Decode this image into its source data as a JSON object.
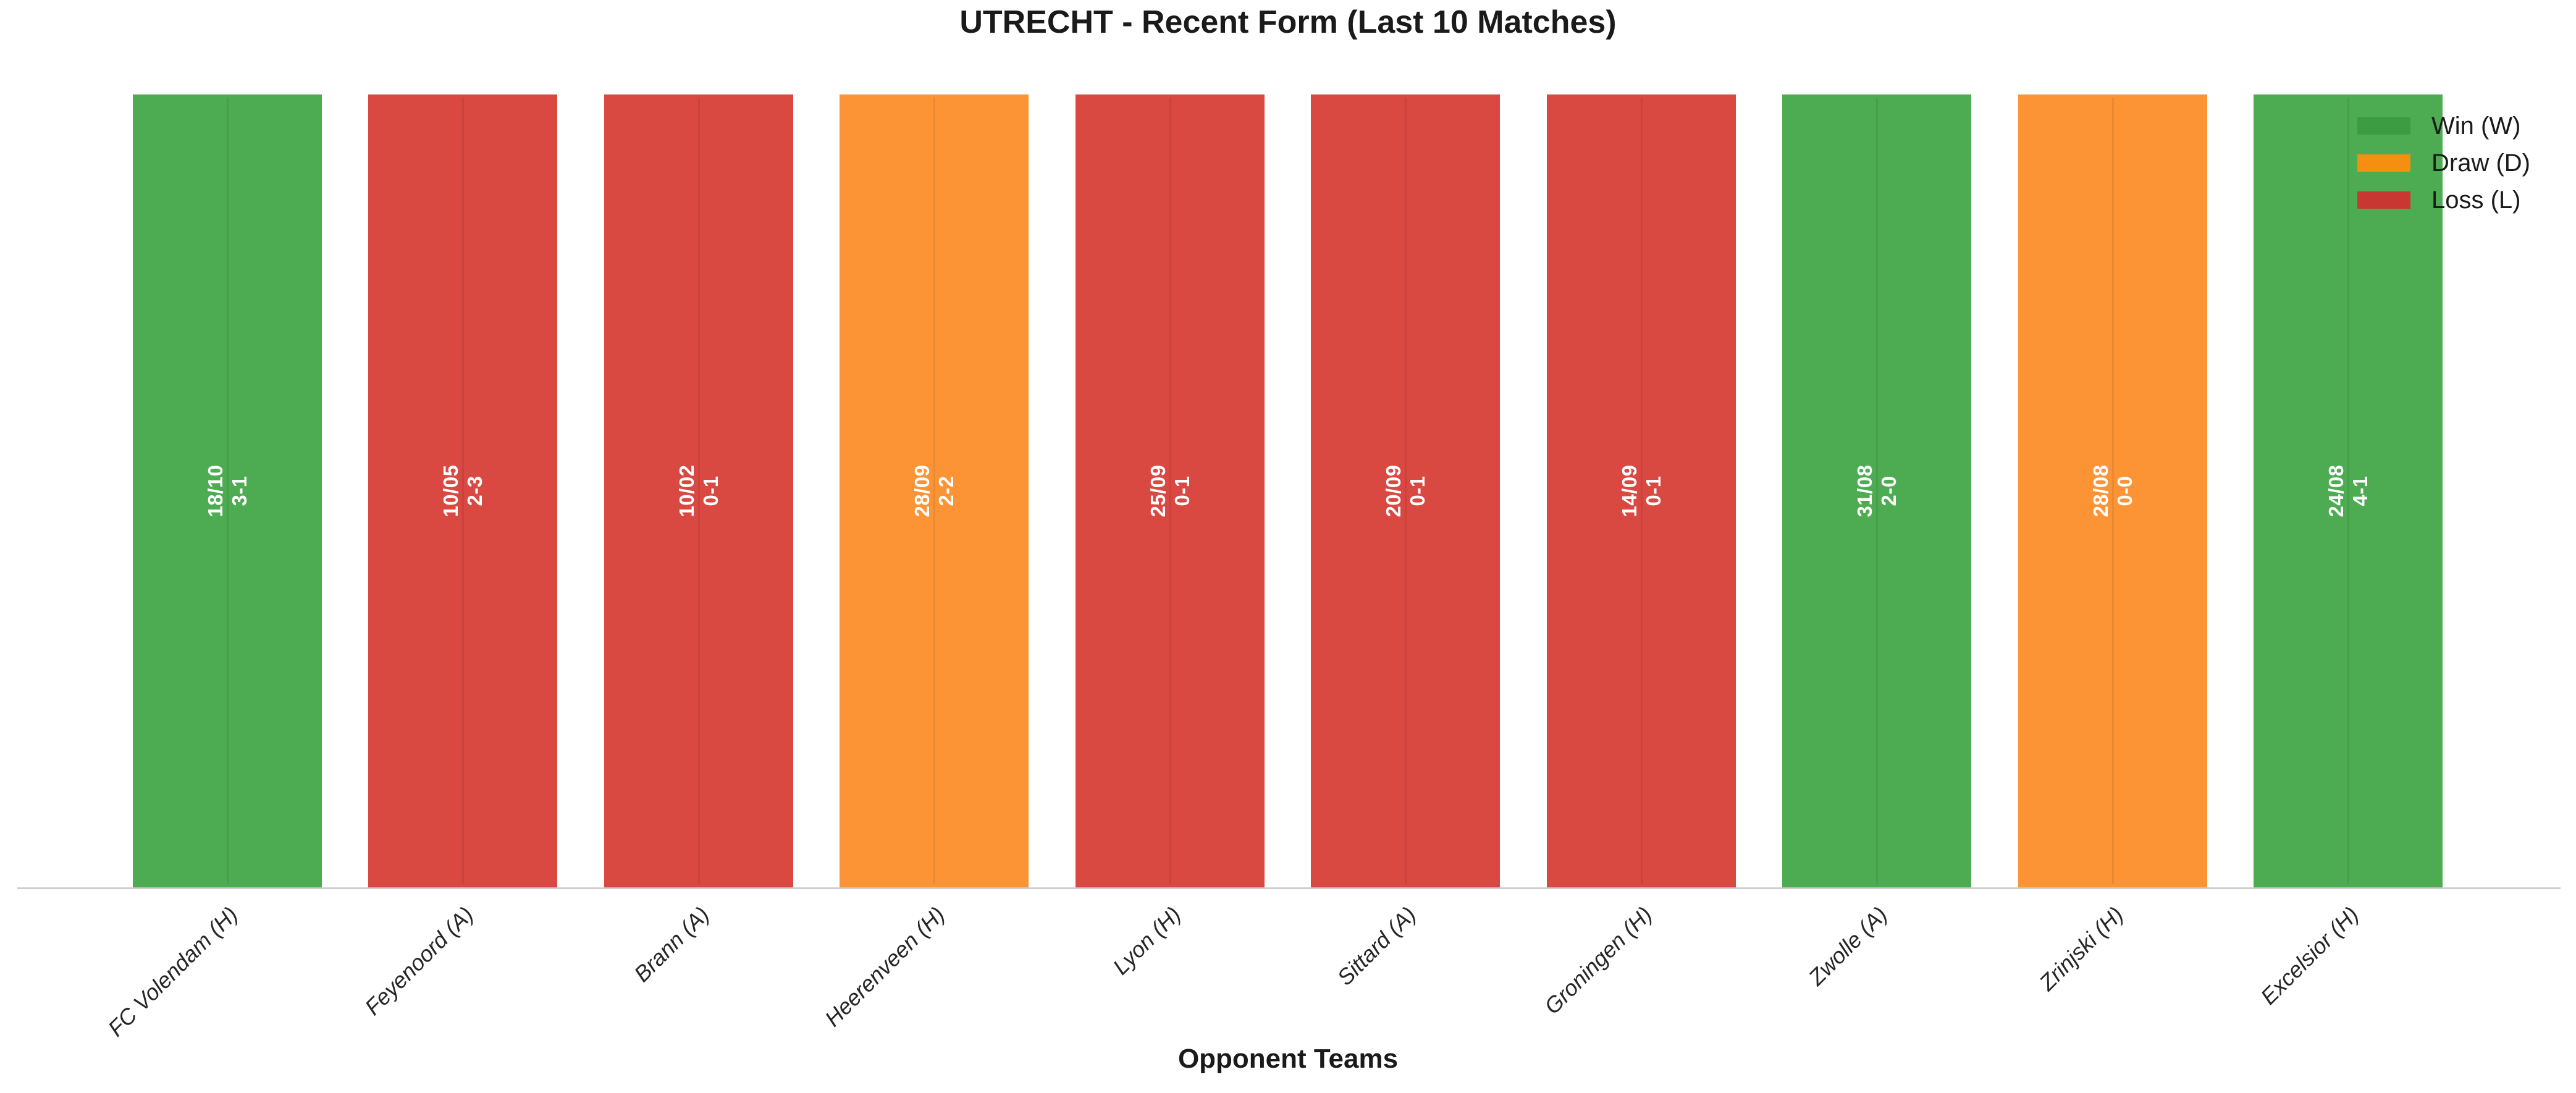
{
  "chart_data": {
    "type": "bar",
    "title": "UTRECHT - Recent Form (Last 10 Matches)",
    "xlabel": "Opponent Teams",
    "ylabel": "",
    "ylim": [
      0,
      1.05
    ],
    "grid": false,
    "orientation": "vertical",
    "categories": [
      "FC Volendam (H)",
      "Feyenoord (A)",
      "Brann (A)",
      "Heerenveen (H)",
      "Lyon (H)",
      "Sittard (A)",
      "Groningen (H)",
      "Zwolle (A)",
      "Zrinjski (H)",
      "Excelsior (H)"
    ],
    "values": [
      1,
      1,
      1,
      1,
      1,
      1,
      1,
      1,
      1,
      1
    ],
    "matches": [
      {
        "opponent": "FC Volendam (H)",
        "date": "18/10",
        "score": "3-1",
        "result": "win"
      },
      {
        "opponent": "Feyenoord (A)",
        "date": "10/05",
        "score": "2-3",
        "result": "loss"
      },
      {
        "opponent": "Brann (A)",
        "date": "10/02",
        "score": "0-1",
        "result": "loss"
      },
      {
        "opponent": "Heerenveen (H)",
        "date": "28/09",
        "score": "2-2",
        "result": "draw"
      },
      {
        "opponent": "Lyon (H)",
        "date": "25/09",
        "score": "0-1",
        "result": "loss"
      },
      {
        "opponent": "Sittard (A)",
        "date": "20/09",
        "score": "0-1",
        "result": "loss"
      },
      {
        "opponent": "Groningen (H)",
        "date": "14/09",
        "score": "0-1",
        "result": "loss"
      },
      {
        "opponent": "Zwolle (A)",
        "date": "31/08",
        "score": "2-0",
        "result": "win"
      },
      {
        "opponent": "Zrinjski (H)",
        "date": "28/08",
        "score": "0-0",
        "result": "draw"
      },
      {
        "opponent": "Excelsior (H)",
        "date": "24/08",
        "score": "4-1",
        "result": "win"
      }
    ],
    "legend": {
      "position": "upper-right",
      "frame": false,
      "entries": [
        {
          "label": "Win (W)",
          "key": "win"
        },
        {
          "label": "Draw (D)",
          "key": "draw"
        },
        {
          "label": "Loss (L)",
          "key": "loss"
        }
      ]
    },
    "colors": {
      "win": "#4DAB52",
      "draw": "#FC9435",
      "loss": "#DA4842",
      "legend_win": "#3C9C41",
      "legend_draw": "#F68E11",
      "legend_loss": "#C93732",
      "axis_line": "#CCCCCC",
      "title_text": "#1A1A1A",
      "tick_text": "#262626",
      "bar_label_text": "#FFFFFF",
      "background": "#FFFFFF"
    }
  }
}
